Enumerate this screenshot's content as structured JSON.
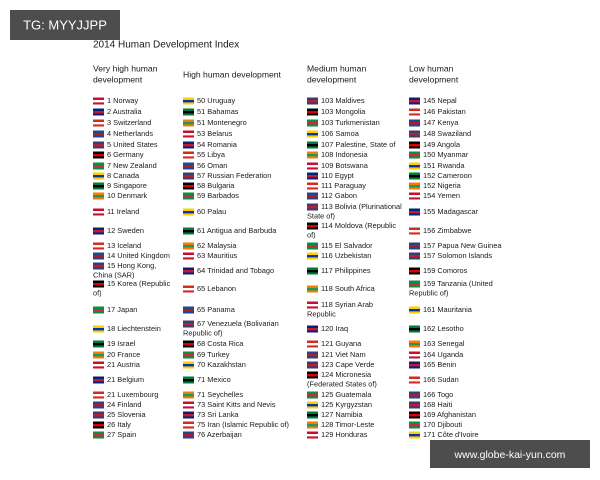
{
  "watermark": "TG: MYYJJPP",
  "title": "2014 Human Development Index",
  "footer_url": "www.globe-kai-yun.com",
  "columns": [
    {
      "heading": [
        "Very high human",
        "development"
      ],
      "entries": [
        "1 Norway",
        "2 Australia",
        "3 Switzerland",
        "4 Netherlands",
        "5 United States",
        "6 Germany",
        "7 New Zealand",
        "8 Canada",
        "9 Singapore",
        "10 Denmark",
        "11 Ireland",
        "12 Sweden",
        "13 Iceland",
        "14 United Kingdom",
        [
          "15 Hong Kong,",
          "China (SAR)"
        ],
        [
          "15 Korea (Republic",
          "of)"
        ],
        "17 Japan",
        "18 Liechtenstein",
        "19 Israel",
        "20 France",
        "21 Austria",
        "21 Belgium",
        "21 Luxembourg",
        "24 Finland",
        "25 Slovenia",
        "26 Italy",
        "27 Spain"
      ]
    },
    {
      "heading": [
        "High human development"
      ],
      "entries": [
        "50 Uruguay",
        "51 Bahamas",
        "51 Montenegro",
        "53 Belarus",
        "54 Romania",
        "55 Libya",
        "56 Oman",
        "57 Russian Federation",
        "58 Bulgaria",
        "59 Barbados",
        "60 Palau",
        "61 Antigua and Barbuda",
        "62 Malaysia",
        "63 Mauritius",
        "64 Trinidad and Tobago",
        "65 Lebanon",
        "65 Panama",
        [
          "67 Venezuela (Bolivarian",
          "Republic of)"
        ],
        "68 Costa Rica",
        "69 Turkey",
        "70 Kazakhstan",
        "71 Mexico",
        "71 Seychelles",
        "73 Saint Kitts and Nevis",
        "73 Sri Lanka",
        "75 Iran (Islamic Republic of)",
        "76 Azerbaijan"
      ]
    },
    {
      "heading": [
        "Medium human",
        "development"
      ],
      "entries": [
        "103 Maldives",
        "103 Mongolia",
        "103 Turkmenistan",
        "106 Samoa",
        "107 Palestine, State of",
        "108 Indonesia",
        "109 Botswana",
        "110 Egypt",
        "111 Paraguay",
        "112 Gabon",
        [
          "113 Bolivia (Plurinational",
          "State of)"
        ],
        [
          "114 Moldova (Republic",
          "of)"
        ],
        "115 El Salvador",
        "116 Uzbekistan",
        "117 Philippines",
        "118 South Africa",
        [
          "118 Syrian Arab",
          "Republic"
        ],
        "120 Iraq",
        "121 Guyana",
        "121 Viet Nam",
        "123 Cape Verde",
        [
          "124 Micronesia",
          "(Federated States of)"
        ],
        "125 Guatemala",
        "125 Kyrgyzstan",
        "127 Namibia",
        "128 Timor-Leste",
        "129 Honduras"
      ]
    },
    {
      "heading": [
        "Low human",
        "development"
      ],
      "entries": [
        "145 Nepal",
        "146 Pakistan",
        "147 Kenya",
        "148 Swaziland",
        "149 Angola",
        "150 Myanmar",
        "151 Rwanda",
        "152 Cameroon",
        "152 Nigeria",
        "154 Yemen",
        "155 Madagascar",
        "156 Zimbabwe",
        "157 Papua New Guinea",
        "157 Solomon Islands",
        "159 Comoros",
        [
          "159 Tanzania (United",
          "Republic of)"
        ],
        "161 Mauritania",
        "162 Lesotho",
        "163 Senegal",
        "164 Uganda",
        "165 Benin",
        "166 Sudan",
        "166 Togo",
        "168 Haiti",
        "169 Afghanistan",
        "170 Djibouti",
        "171 Côte d'Ivoire"
      ]
    }
  ]
}
